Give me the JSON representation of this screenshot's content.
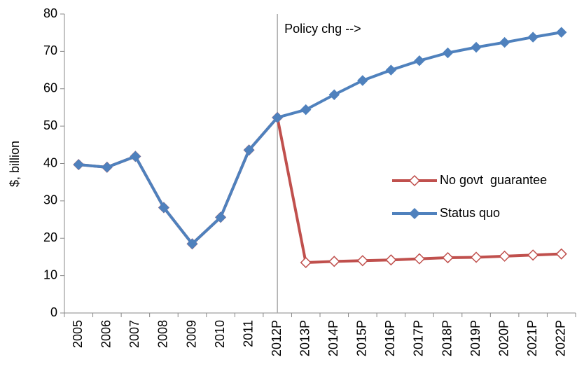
{
  "chart_data": {
    "type": "line",
    "y_label": "$, billion",
    "categories": [
      "2005",
      "2006",
      "2007",
      "2008",
      "2009",
      "2010",
      "2011",
      "2012P",
      "2013P",
      "2014P",
      "2015P",
      "2016P",
      "2017P",
      "2018P",
      "2019P",
      "2020P",
      "2021P",
      "2022P"
    ],
    "series": [
      {
        "name": "No govt  guarantee",
        "color": "#c0504d",
        "marker": "hollow-diamond",
        "values": [
          39.7,
          39,
          41.9,
          28.2,
          18.5,
          25.6,
          43.6,
          52.3,
          13.5,
          13.8,
          14,
          14.2,
          14.5,
          14.8,
          14.9,
          15.2,
          15.5,
          15.8
        ]
      },
      {
        "name": "Status quo",
        "color": "#4f81bd",
        "marker": "diamond",
        "values": [
          39.7,
          39,
          41.9,
          28.2,
          18.5,
          25.6,
          43.6,
          52.3,
          54.4,
          58.4,
          62.2,
          65,
          67.5,
          69.6,
          71.1,
          72.4,
          73.8,
          75.1
        ]
      }
    ],
    "annotation": {
      "text": "Policy chg -->",
      "x": "2012P"
    },
    "ylim": [
      0,
      80
    ],
    "yticks": [
      0,
      10,
      20,
      30,
      40,
      50,
      60,
      70,
      80
    ],
    "grid": false,
    "legend": "right"
  }
}
